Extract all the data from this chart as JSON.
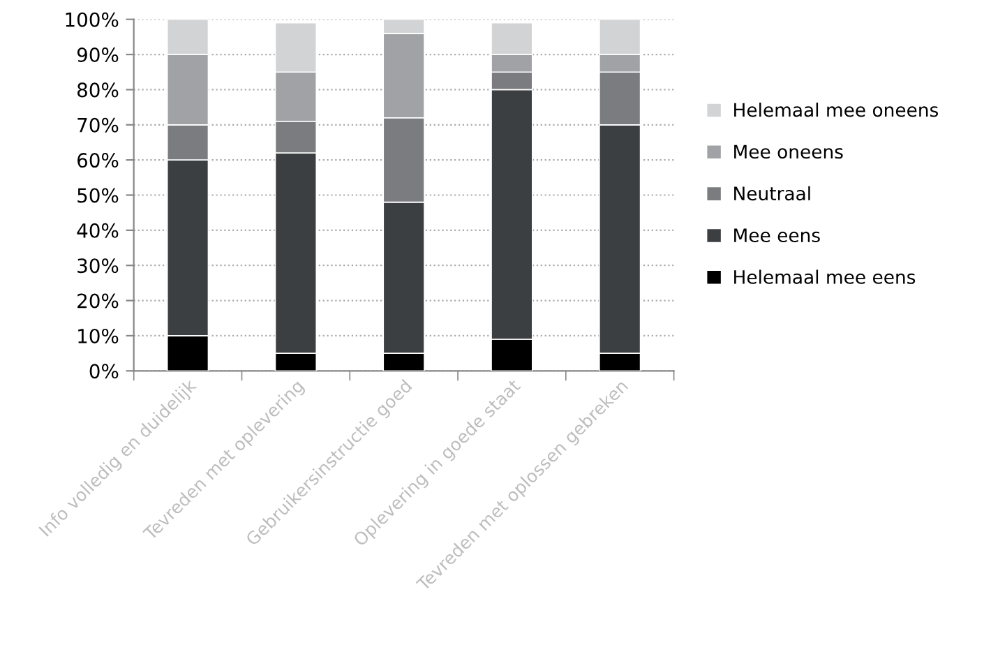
{
  "chart_data": {
    "type": "bar",
    "stacked": true,
    "categories": [
      "Info volledig en duidelijk",
      "Tevreden met oplevering",
      "Gebruikersinstructie goed",
      "Oplevering in goede staat",
      "Tevreden met oplossen gebreken"
    ],
    "series": [
      {
        "name": "Helemaal mee eens",
        "color": "#000000",
        "values": [
          10,
          5,
          5,
          9,
          5
        ]
      },
      {
        "name": "Mee eens",
        "color": "#3c3f42",
        "values": [
          50,
          57,
          43,
          71,
          65
        ]
      },
      {
        "name": "Neutraal",
        "color": "#7b7c7f",
        "values": [
          10,
          9,
          24,
          5,
          15
        ]
      },
      {
        "name": "Mee oneens",
        "color": "#a0a2a5",
        "values": [
          20,
          14,
          24,
          5,
          5
        ]
      },
      {
        "name": "Helemaal mee oneens",
        "color": "#d2d3d4",
        "values": [
          10,
          14,
          4,
          9,
          10
        ]
      }
    ],
    "ylim": [
      0,
      100
    ],
    "yticks": [
      {
        "value": 0,
        "label": "0%"
      },
      {
        "value": 10,
        "label": "10%"
      },
      {
        "value": 20,
        "label": "20%"
      },
      {
        "value": 30,
        "label": "30%"
      },
      {
        "value": 40,
        "label": "40%"
      },
      {
        "value": 50,
        "label": "50%"
      },
      {
        "value": 60,
        "label": "60%"
      },
      {
        "value": 70,
        "label": "70%"
      },
      {
        "value": 80,
        "label": "80%"
      },
      {
        "value": 90,
        "label": "90%"
      },
      {
        "value": 100,
        "label": "100%"
      }
    ],
    "grid": "y",
    "legend": "right"
  }
}
